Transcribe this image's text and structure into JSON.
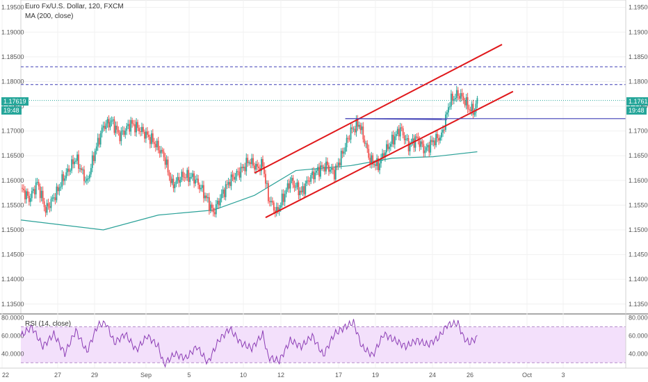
{
  "header": {
    "symbol_line": "Euro Fx/U.S. Dollar, 120, FXCM",
    "indicator_line": "MA (200, close)",
    "rsi_label": "RSI (14, close)"
  },
  "price_tag": {
    "value": "1.17619",
    "countdown": "19:48"
  },
  "chart_data": [
    {
      "type": "candlestick",
      "title": "Euro Fx/U.S. Dollar, 120, FXCM",
      "x_tick_labels": [
        "22",
        "27",
        "29",
        "Sep",
        "5",
        "10",
        "12",
        "17",
        "19",
        "24",
        "26",
        "Oct",
        "3"
      ],
      "y_tick_labels": [
        "1.13500",
        "1.14000",
        "1.14500",
        "1.15000",
        "1.15500",
        "1.16000",
        "1.16500",
        "1.17000",
        "1.17500",
        "1.18000",
        "1.18500",
        "1.19000",
        "1.19500"
      ],
      "ylim": [
        1.133,
        1.1965
      ],
      "last_price": 1.17619,
      "close_path": [
        [
          0,
          1.1585
        ],
        [
          6,
          1.1562
        ],
        [
          12,
          1.1595
        ],
        [
          18,
          1.154
        ],
        [
          26,
          1.1575
        ],
        [
          30,
          1.16
        ],
        [
          40,
          1.1645
        ],
        [
          48,
          1.1595
        ],
        [
          54,
          1.166
        ],
        [
          60,
          1.171
        ],
        [
          66,
          1.172
        ],
        [
          72,
          1.169
        ],
        [
          80,
          1.1715
        ],
        [
          88,
          1.17
        ],
        [
          96,
          1.168
        ],
        [
          104,
          1.165
        ],
        [
          110,
          1.159
        ],
        [
          118,
          1.161
        ],
        [
          126,
          1.1605
        ],
        [
          132,
          1.158
        ],
        [
          140,
          1.1535
        ],
        [
          146,
          1.157
        ],
        [
          152,
          1.16
        ],
        [
          160,
          1.162
        ],
        [
          166,
          1.164
        ],
        [
          172,
          1.1625
        ],
        [
          176,
          1.1632
        ],
        [
          180,
          1.1565
        ],
        [
          186,
          1.1535
        ],
        [
          190,
          1.156
        ],
        [
          196,
          1.16
        ],
        [
          204,
          1.1575
        ],
        [
          210,
          1.1605
        ],
        [
          216,
          1.162
        ],
        [
          222,
          1.163
        ],
        [
          228,
          1.1615
        ],
        [
          234,
          1.1655
        ],
        [
          240,
          1.17
        ],
        [
          246,
          1.1715
        ],
        [
          250,
          1.168
        ],
        [
          254,
          1.164
        ],
        [
          260,
          1.163
        ],
        [
          264,
          1.1655
        ],
        [
          270,
          1.168
        ],
        [
          276,
          1.1705
        ],
        [
          282,
          1.167
        ],
        [
          288,
          1.1685
        ],
        [
          294,
          1.166
        ],
        [
          300,
          1.168
        ],
        [
          306,
          1.169
        ],
        [
          312,
          1.176
        ],
        [
          318,
          1.1775
        ],
        [
          322,
          1.1765
        ],
        [
          326,
          1.1745
        ],
        [
          330,
          1.174
        ],
        [
          332,
          1.1762
        ]
      ],
      "moving_average": {
        "name": "MA (200, close)",
        "points": [
          [
            0,
            1.152
          ],
          [
            30,
            1.151
          ],
          [
            60,
            1.15
          ],
          [
            100,
            1.153
          ],
          [
            140,
            1.154
          ],
          [
            170,
            1.157
          ],
          [
            200,
            1.162
          ],
          [
            240,
            1.163
          ],
          [
            270,
            1.1645
          ],
          [
            300,
            1.1648
          ],
          [
            332,
            1.1658
          ]
        ]
      },
      "horizontal_levels": [
        {
          "price": 1.183,
          "style": "dashed",
          "color": "#3f3fb5"
        },
        {
          "price": 1.1794,
          "style": "dashed",
          "color": "#3f3fb5"
        },
        {
          "price": 1.17619,
          "style": "dotted",
          "color": "#26a69a"
        }
      ],
      "trend_lines": [
        {
          "name": "channel-upper",
          "from": [
            170,
            1.1615
          ],
          "to": [
            350,
            1.1875
          ],
          "color": "#e0181b"
        },
        {
          "name": "channel-lower",
          "from": [
            178,
            1.1525
          ],
          "to": [
            358,
            1.178
          ],
          "color": "#e0181b"
        },
        {
          "name": "support-line",
          "from": [
            236,
            1.1725
          ],
          "to": [
            440,
            1.1725
          ],
          "color": "#3f3fb5"
        },
        {
          "name": "support-connector",
          "from": [
            236,
            1.1725
          ],
          "to": [
            310,
            1.1723
          ],
          "color": "#3f3fb5"
        }
      ],
      "colors": {
        "up": "#26a69a",
        "down": "#ef5350",
        "ma": "#2aa198"
      }
    },
    {
      "type": "line",
      "title": "RSI (14, close)",
      "y_tick_labels": [
        "40.0000",
        "60.0000",
        "80.0000"
      ],
      "ylim": [
        24,
        82
      ],
      "bands": [
        30,
        70
      ],
      "series": [
        {
          "values": [
            [
              0,
              60
            ],
            [
              8,
              70
            ],
            [
              16,
              48
            ],
            [
              24,
              62
            ],
            [
              32,
              40
            ],
            [
              40,
              66
            ],
            [
              48,
              42
            ],
            [
              56,
              72
            ],
            [
              62,
              74
            ],
            [
              68,
              52
            ],
            [
              76,
              62
            ],
            [
              84,
              44
            ],
            [
              92,
              60
            ],
            [
              100,
              48
            ],
            [
              104,
              28
            ],
            [
              112,
              40
            ],
            [
              120,
              35
            ],
            [
              128,
              48
            ],
            [
              136,
              30
            ],
            [
              144,
              55
            ],
            [
              152,
              68
            ],
            [
              160,
              52
            ],
            [
              168,
              46
            ],
            [
              176,
              62
            ],
            [
              180,
              36
            ],
            [
              188,
              32
            ],
            [
              196,
              55
            ],
            [
              204,
              48
            ],
            [
              212,
              60
            ],
            [
              220,
              38
            ],
            [
              228,
              62
            ],
            [
              236,
              70
            ],
            [
              242,
              75
            ],
            [
              248,
              48
            ],
            [
              256,
              38
            ],
            [
              264,
              62
            ],
            [
              272,
              55
            ],
            [
              280,
              48
            ],
            [
              288,
              55
            ],
            [
              296,
              50
            ],
            [
              304,
              58
            ],
            [
              310,
              72
            ],
            [
              318,
              74
            ],
            [
              322,
              58
            ],
            [
              326,
              52
            ],
            [
              332,
              58
            ]
          ]
        }
      ],
      "colors": {
        "line": "#8c3db5",
        "band_fill": "#f3e0fb"
      }
    }
  ]
}
